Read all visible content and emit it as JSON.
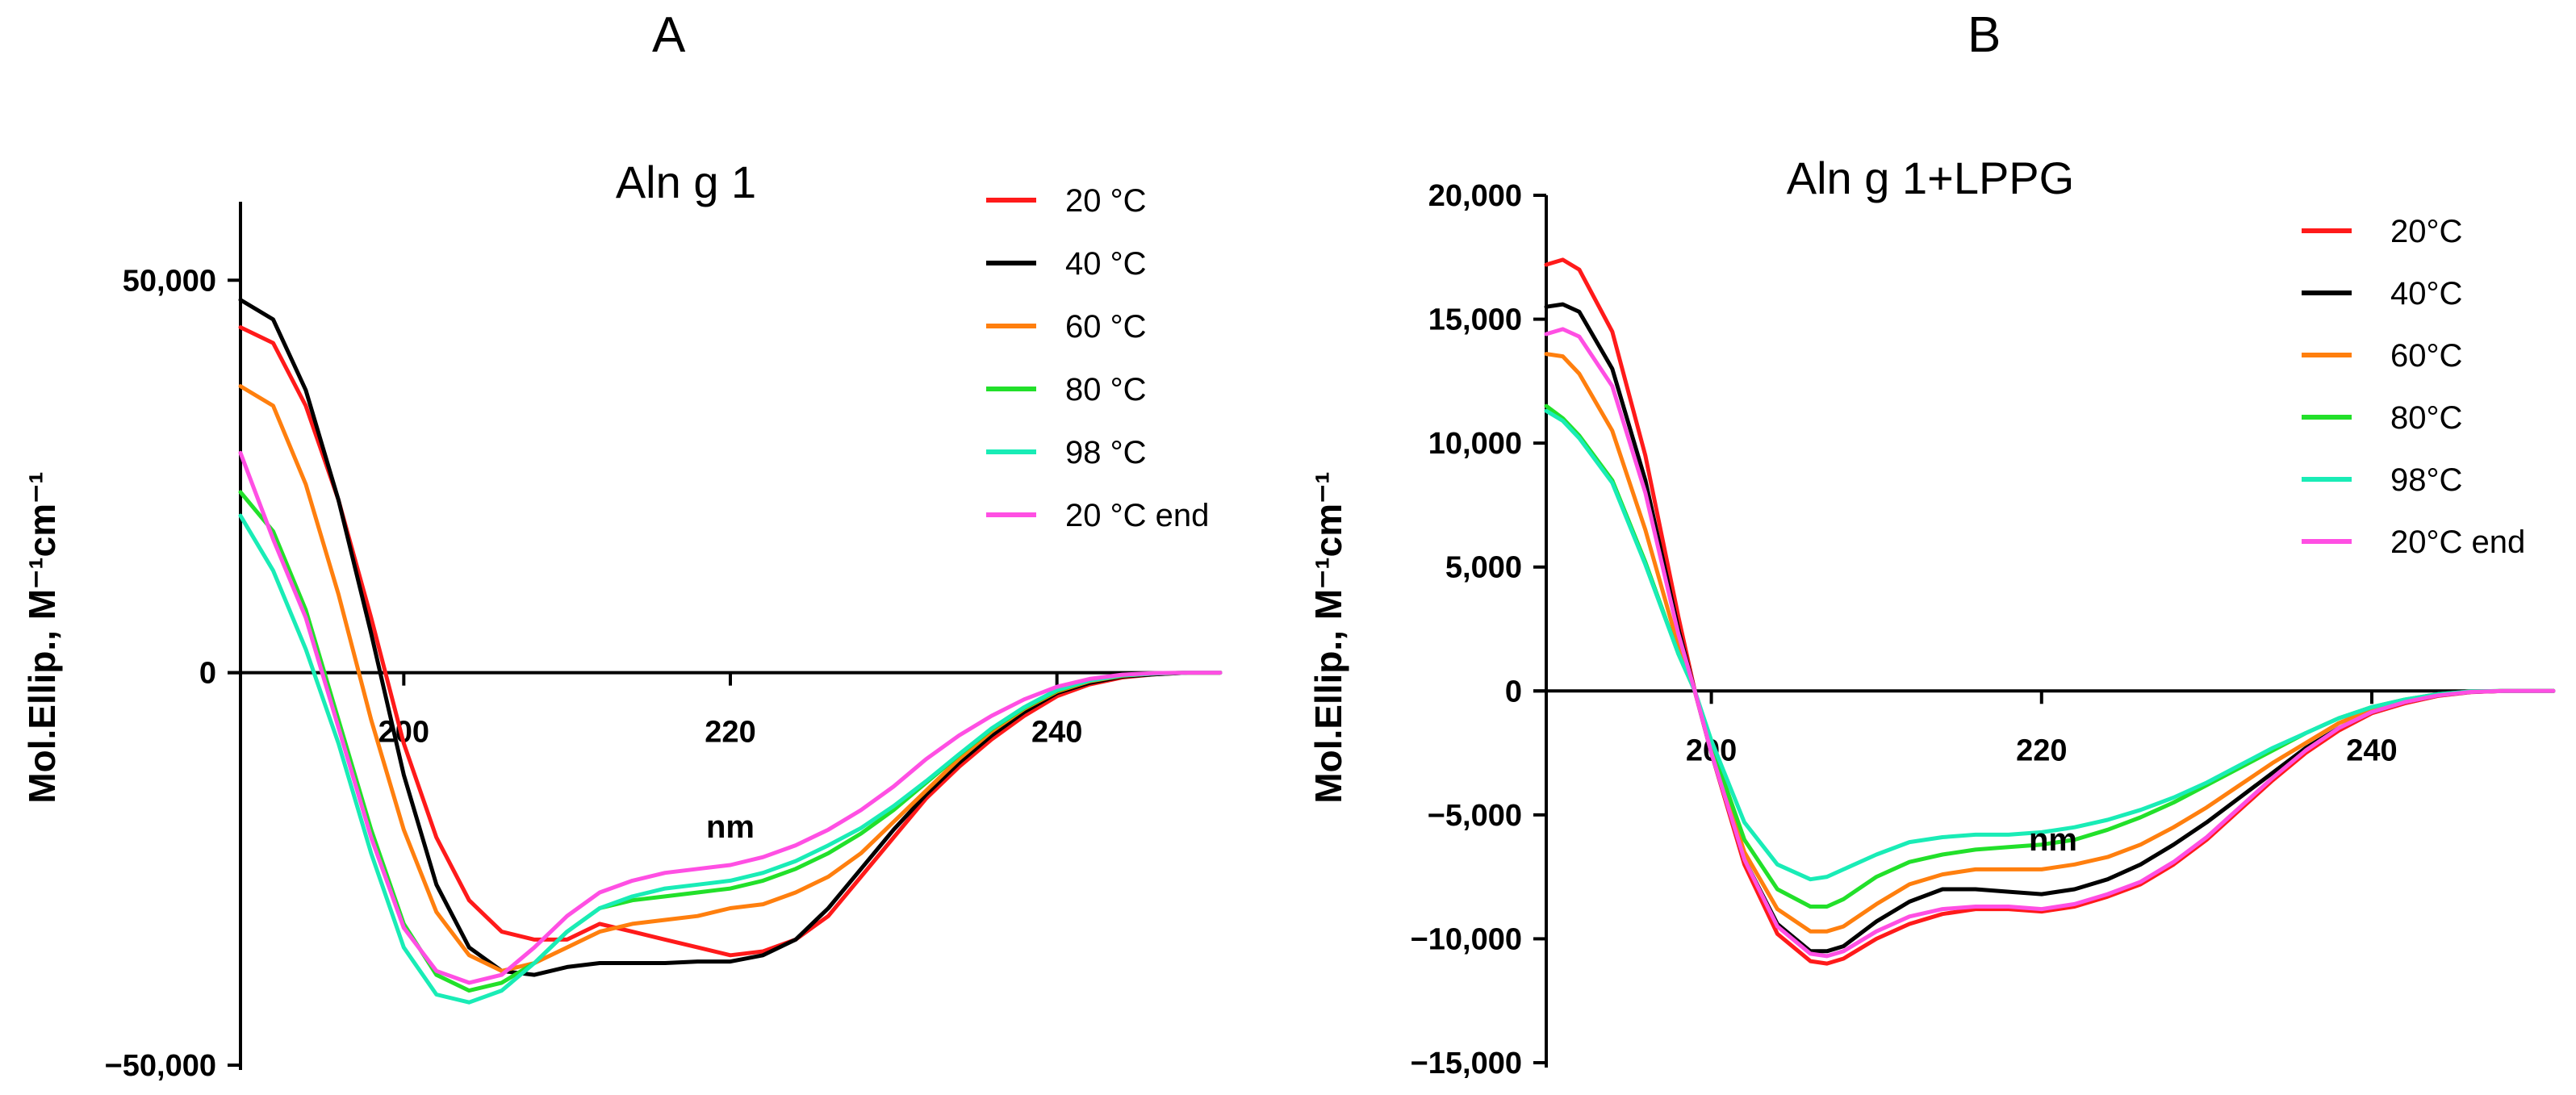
{
  "panels": {
    "A": {
      "letter": "A"
    },
    "B": {
      "letter": "B"
    }
  },
  "chart_data": [
    {
      "type": "line",
      "panel": "A",
      "title": "Aln g 1",
      "xlabel": "nm",
      "ylabel": "Mol.Ellip., M⁻¹cm⁻¹",
      "xlim": [
        190,
        250
      ],
      "ylim": [
        -50000,
        60000
      ],
      "xticks": [
        200,
        220,
        240
      ],
      "xtick_labels": [
        "200",
        "220",
        "240"
      ],
      "yticks": [
        -50000,
        0,
        50000
      ],
      "ytick_labels": [
        "−50,000",
        "0",
        "50,000"
      ],
      "legend_position": "top-right",
      "series": [
        {
          "name": "20 °C",
          "color": "#ff1a1a",
          "x": [
            190,
            192,
            194,
            196,
            198,
            200,
            202,
            204,
            206,
            208,
            210,
            212,
            214,
            216,
            218,
            220,
            222,
            224,
            226,
            228,
            230,
            232,
            234,
            236,
            238,
            240,
            242,
            244,
            246,
            248,
            250
          ],
          "y": [
            44000,
            42000,
            34000,
            22000,
            7000,
            -9000,
            -21000,
            -29000,
            -33000,
            -34000,
            -34000,
            -32000,
            -33000,
            -34000,
            -35000,
            -36000,
            -35500,
            -34000,
            -31000,
            -26000,
            -21000,
            -16000,
            -12000,
            -8500,
            -5500,
            -3000,
            -1500,
            -600,
            -200,
            0,
            0
          ]
        },
        {
          "name": "40 °C",
          "color": "#000000",
          "x": [
            190,
            192,
            194,
            196,
            198,
            200,
            202,
            204,
            206,
            208,
            210,
            212,
            214,
            216,
            218,
            220,
            222,
            224,
            226,
            228,
            230,
            232,
            234,
            236,
            238,
            240,
            242,
            244,
            246,
            248,
            250
          ],
          "y": [
            47500,
            45000,
            36000,
            22000,
            5000,
            -13000,
            -27000,
            -35000,
            -38000,
            -38500,
            -37500,
            -37000,
            -37000,
            -37000,
            -36800,
            -36800,
            -36000,
            -34000,
            -30000,
            -25000,
            -20000,
            -15500,
            -11500,
            -8000,
            -5000,
            -2600,
            -1300,
            -500,
            -200,
            0,
            0
          ]
        },
        {
          "name": "60 °C",
          "color": "#ff7f0e",
          "x": [
            190,
            192,
            194,
            196,
            198,
            200,
            202,
            204,
            206,
            208,
            210,
            212,
            214,
            216,
            218,
            220,
            222,
            224,
            226,
            228,
            230,
            232,
            234,
            236,
            238,
            240,
            242,
            244,
            246,
            248,
            250
          ],
          "y": [
            36500,
            34000,
            24000,
            10000,
            -6000,
            -20000,
            -30500,
            -36000,
            -38000,
            -37000,
            -35000,
            -33000,
            -32000,
            -31500,
            -31000,
            -30000,
            -29500,
            -28000,
            -26000,
            -23000,
            -19000,
            -15000,
            -11000,
            -7500,
            -4600,
            -2400,
            -1100,
            -400,
            -100,
            0,
            0
          ]
        },
        {
          "name": "80 °C",
          "color": "#22e02a",
          "x": [
            190,
            192,
            194,
            196,
            198,
            200,
            202,
            204,
            206,
            208,
            210,
            212,
            214,
            216,
            218,
            220,
            222,
            224,
            226,
            228,
            230,
            232,
            234,
            236,
            238,
            240,
            242,
            244,
            246,
            248,
            250
          ],
          "y": [
            23000,
            18000,
            8000,
            -6000,
            -20000,
            -32000,
            -38500,
            -40500,
            -39500,
            -37000,
            -33000,
            -30000,
            -29000,
            -28500,
            -28000,
            -27500,
            -26500,
            -25000,
            -23000,
            -20500,
            -17500,
            -14000,
            -10500,
            -7200,
            -4500,
            -2300,
            -1000,
            -350,
            -100,
            0,
            0
          ]
        },
        {
          "name": "98 °C",
          "color": "#19ecb6",
          "x": [
            190,
            192,
            194,
            196,
            198,
            200,
            202,
            204,
            206,
            208,
            210,
            212,
            214,
            216,
            218,
            220,
            222,
            224,
            226,
            228,
            230,
            232,
            234,
            236,
            238,
            240,
            242,
            244,
            246,
            248,
            250
          ],
          "y": [
            20000,
            13000,
            3000,
            -9000,
            -23000,
            -35000,
            -41000,
            -42000,
            -40500,
            -37000,
            -33000,
            -30000,
            -28500,
            -27500,
            -27000,
            -26500,
            -25500,
            -24000,
            -22000,
            -19800,
            -17000,
            -13800,
            -10400,
            -7100,
            -4400,
            -2200,
            -1000,
            -350,
            -100,
            0,
            0
          ]
        },
        {
          "name": "20 °C end",
          "color": "#ff4fe3",
          "x": [
            190,
            192,
            194,
            196,
            198,
            200,
            202,
            204,
            206,
            208,
            210,
            212,
            214,
            216,
            218,
            220,
            222,
            224,
            226,
            228,
            230,
            232,
            234,
            236,
            238,
            240,
            242,
            244,
            246,
            248,
            250
          ],
          "y": [
            28000,
            17000,
            7000,
            -7000,
            -21000,
            -32500,
            -38000,
            -39500,
            -38500,
            -35000,
            -31000,
            -28000,
            -26500,
            -25500,
            -25000,
            -24500,
            -23500,
            -22000,
            -20000,
            -17500,
            -14500,
            -11000,
            -8000,
            -5500,
            -3400,
            -1800,
            -800,
            -250,
            -50,
            0,
            0
          ]
        }
      ]
    },
    {
      "type": "line",
      "panel": "B",
      "title": "Aln g 1+LPPG",
      "xlabel": "nm",
      "ylabel": "Mol.Ellip., M⁻¹cm⁻¹",
      "xlim": [
        190,
        251
      ],
      "ylim": [
        -15000,
        20000
      ],
      "xticks": [
        200,
        220,
        240
      ],
      "xtick_labels": [
        "200",
        "220",
        "240"
      ],
      "yticks": [
        -15000,
        -10000,
        -5000,
        0,
        5000,
        10000,
        15000,
        20000
      ],
      "ytick_labels": [
        "−15,000",
        "−10,000",
        "−5,000",
        "0",
        "5,000",
        "10,000",
        "15,000",
        "20,000"
      ],
      "legend_position": "top-right",
      "series": [
        {
          "name": "20°C",
          "color": "#ff1a1a",
          "x": [
            190,
            191,
            192,
            194,
            196,
            198,
            199,
            200,
            202,
            204,
            206,
            207,
            208,
            210,
            212,
            214,
            216,
            218,
            220,
            222,
            224,
            226,
            228,
            230,
            232,
            234,
            236,
            238,
            240,
            242,
            244,
            246,
            248,
            250,
            251
          ],
          "y": [
            17200,
            17400,
            17000,
            14500,
            9500,
            3000,
            0,
            -2500,
            -7000,
            -9800,
            -10900,
            -11000,
            -10800,
            -10000,
            -9400,
            -9000,
            -8800,
            -8800,
            -8900,
            -8700,
            -8300,
            -7800,
            -7000,
            -6000,
            -4800,
            -3600,
            -2500,
            -1600,
            -900,
            -500,
            -200,
            -50,
            0,
            0,
            0
          ]
        },
        {
          "name": "40°C",
          "color": "#000000",
          "x": [
            190,
            191,
            192,
            194,
            196,
            198,
            199,
            200,
            202,
            204,
            206,
            207,
            208,
            210,
            212,
            214,
            216,
            218,
            220,
            222,
            224,
            226,
            228,
            230,
            232,
            234,
            236,
            238,
            240,
            242,
            244,
            246,
            248,
            250,
            251
          ],
          "y": [
            15500,
            15600,
            15300,
            13000,
            8500,
            2500,
            0,
            -2500,
            -6800,
            -9400,
            -10500,
            -10500,
            -10300,
            -9300,
            -8500,
            -8000,
            -8000,
            -8100,
            -8200,
            -8000,
            -7600,
            -7000,
            -6200,
            -5300,
            -4300,
            -3300,
            -2300,
            -1500,
            -850,
            -450,
            -180,
            -40,
            0,
            0,
            0
          ]
        },
        {
          "name": "60°C",
          "color": "#ff7f0e",
          "x": [
            190,
            191,
            192,
            194,
            196,
            198,
            199,
            200,
            202,
            204,
            206,
            207,
            208,
            210,
            212,
            214,
            216,
            218,
            220,
            222,
            224,
            226,
            228,
            230,
            232,
            234,
            236,
            238,
            240,
            242,
            244,
            246,
            248,
            250,
            251
          ],
          "y": [
            13600,
            13500,
            12800,
            10500,
            6500,
            1800,
            0,
            -2400,
            -6500,
            -8800,
            -9700,
            -9700,
            -9500,
            -8600,
            -7800,
            -7400,
            -7200,
            -7200,
            -7200,
            -7000,
            -6700,
            -6200,
            -5500,
            -4700,
            -3800,
            -2900,
            -2100,
            -1300,
            -750,
            -400,
            -150,
            -30,
            0,
            0,
            0
          ]
        },
        {
          "name": "80°C",
          "color": "#22e02a",
          "x": [
            190,
            191,
            192,
            194,
            196,
            198,
            199,
            200,
            202,
            204,
            206,
            207,
            208,
            210,
            212,
            214,
            216,
            218,
            220,
            222,
            224,
            226,
            228,
            230,
            232,
            234,
            236,
            238,
            240,
            242,
            244,
            246,
            248,
            250,
            251
          ],
          "y": [
            11500,
            11000,
            10300,
            8500,
            5200,
            1500,
            0,
            -2200,
            -6000,
            -8000,
            -8700,
            -8700,
            -8400,
            -7500,
            -6900,
            -6600,
            -6400,
            -6300,
            -6200,
            -6000,
            -5600,
            -5100,
            -4500,
            -3800,
            -3100,
            -2400,
            -1700,
            -1100,
            -650,
            -350,
            -130,
            -20,
            0,
            0,
            0
          ]
        },
        {
          "name": "98°C",
          "color": "#19ecb6",
          "x": [
            190,
            191,
            192,
            194,
            196,
            198,
            199,
            200,
            202,
            204,
            206,
            207,
            208,
            210,
            212,
            214,
            216,
            218,
            220,
            222,
            224,
            226,
            228,
            230,
            232,
            234,
            236,
            238,
            240,
            242,
            244,
            246,
            248,
            250,
            251
          ],
          "y": [
            11300,
            10900,
            10200,
            8400,
            5100,
            1500,
            0,
            -2000,
            -5300,
            -7000,
            -7600,
            -7500,
            -7200,
            -6600,
            -6100,
            -5900,
            -5800,
            -5800,
            -5700,
            -5500,
            -5200,
            -4800,
            -4300,
            -3700,
            -3000,
            -2300,
            -1700,
            -1100,
            -650,
            -350,
            -130,
            -20,
            0,
            0,
            0
          ]
        },
        {
          "name": "20°C end",
          "color": "#ff4fe3",
          "x": [
            190,
            191,
            192,
            194,
            196,
            198,
            199,
            200,
            202,
            204,
            206,
            207,
            208,
            210,
            212,
            214,
            216,
            218,
            220,
            222,
            224,
            226,
            228,
            230,
            232,
            234,
            236,
            238,
            240,
            242,
            244,
            246,
            248,
            250,
            251
          ],
          "y": [
            14400,
            14600,
            14300,
            12300,
            8000,
            2300,
            0,
            -2500,
            -6800,
            -9500,
            -10600,
            -10700,
            -10500,
            -9700,
            -9100,
            -8800,
            -8700,
            -8700,
            -8800,
            -8600,
            -8200,
            -7700,
            -6900,
            -5900,
            -4700,
            -3500,
            -2400,
            -1500,
            -850,
            -450,
            -180,
            -40,
            0,
            0,
            0
          ]
        }
      ]
    }
  ]
}
